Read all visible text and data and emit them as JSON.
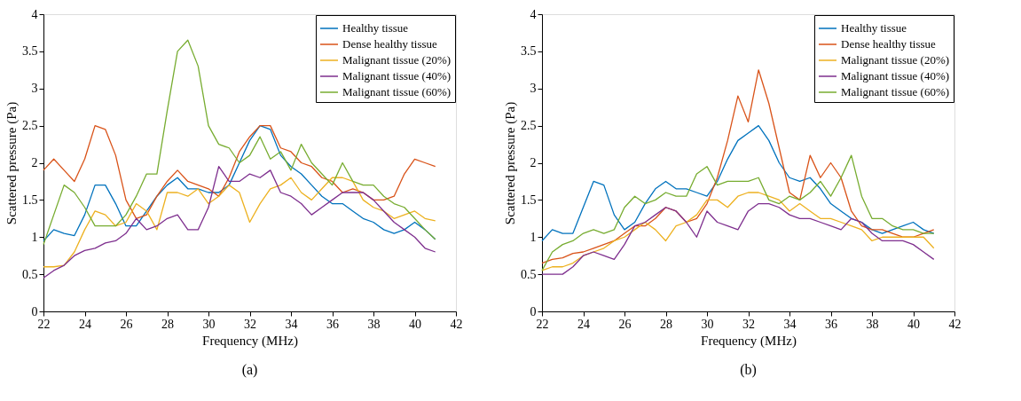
{
  "chart_data": [
    {
      "type": "line",
      "title": "(a)",
      "xlabel": "Frequency (MHz)",
      "ylabel": "Scattered pressure (Pa)",
      "xlim": [
        22,
        42
      ],
      "ylim": [
        0,
        4
      ],
      "xticks": [
        22,
        24,
        26,
        28,
        30,
        32,
        34,
        36,
        38,
        40,
        42
      ],
      "yticks": [
        0,
        0.5,
        1,
        1.5,
        2,
        2.5,
        3,
        3.5,
        4
      ],
      "grid": false,
      "legend": "top right",
      "marker": "none",
      "line_style": "solid",
      "x": [
        22,
        22.5,
        23,
        23.5,
        24,
        24.5,
        25,
        25.5,
        26,
        26.5,
        27,
        27.5,
        28,
        28.5,
        29,
        29.5,
        30,
        30.5,
        31,
        31.5,
        32,
        32.5,
        33,
        33.5,
        34,
        34.5,
        35,
        35.5,
        36,
        36.5,
        37,
        37.5,
        38,
        38.5,
        39,
        39.5,
        40,
        40.5,
        41
      ],
      "series": [
        {
          "name": "Healthy tissue",
          "color": "#0072bd",
          "values": [
            0.95,
            1.1,
            1.05,
            1.02,
            1.3,
            1.7,
            1.7,
            1.45,
            1.15,
            1.15,
            1.35,
            1.55,
            1.7,
            1.8,
            1.65,
            1.65,
            1.6,
            1.6,
            1.7,
            2.0,
            2.3,
            2.5,
            2.45,
            2.1,
            1.95,
            1.85,
            1.7,
            1.55,
            1.45,
            1.45,
            1.35,
            1.25,
            1.2,
            1.1,
            1.05,
            1.1,
            1.2,
            1.1,
            0.97
          ]
        },
        {
          "name": "Dense healthy tissue",
          "color": "#d95319",
          "values": [
            1.9,
            2.05,
            1.9,
            1.75,
            2.05,
            2.5,
            2.45,
            2.1,
            1.5,
            1.25,
            1.3,
            1.55,
            1.75,
            1.9,
            1.75,
            1.7,
            1.65,
            1.55,
            1.8,
            2.15,
            2.35,
            2.5,
            2.5,
            2.2,
            2.15,
            2.0,
            1.95,
            1.8,
            1.75,
            1.6,
            1.65,
            1.6,
            1.5,
            1.5,
            1.55,
            1.85,
            2.05,
            2.0,
            1.95
          ]
        },
        {
          "name": "Malignant tissue (20%)",
          "color": "#edb120",
          "values": [
            0.6,
            0.6,
            0.62,
            0.8,
            1.1,
            1.35,
            1.3,
            1.15,
            1.2,
            1.45,
            1.35,
            1.1,
            1.6,
            1.6,
            1.55,
            1.65,
            1.45,
            1.55,
            1.7,
            1.6,
            1.2,
            1.45,
            1.65,
            1.7,
            1.8,
            1.6,
            1.5,
            1.65,
            1.8,
            1.8,
            1.75,
            1.5,
            1.4,
            1.35,
            1.25,
            1.3,
            1.35,
            1.25,
            1.22
          ]
        },
        {
          "name": "Malignant tissue (40%)",
          "color": "#7e2f8e",
          "values": [
            0.45,
            0.55,
            0.62,
            0.75,
            0.82,
            0.85,
            0.92,
            0.95,
            1.05,
            1.25,
            1.1,
            1.15,
            1.25,
            1.3,
            1.1,
            1.1,
            1.4,
            1.95,
            1.75,
            1.75,
            1.85,
            1.8,
            1.9,
            1.6,
            1.55,
            1.45,
            1.3,
            1.4,
            1.5,
            1.6,
            1.6,
            1.6,
            1.5,
            1.35,
            1.2,
            1.1,
            1.0,
            0.85,
            0.8
          ]
        },
        {
          "name": "Malignant tissue (60%)",
          "color": "#77ac30",
          "values": [
            0.9,
            1.3,
            1.7,
            1.6,
            1.4,
            1.15,
            1.15,
            1.15,
            1.3,
            1.55,
            1.85,
            1.85,
            2.7,
            3.5,
            3.65,
            3.3,
            2.5,
            2.25,
            2.2,
            2.0,
            2.1,
            2.35,
            2.05,
            2.15,
            1.9,
            2.25,
            2.0,
            1.85,
            1.7,
            2.0,
            1.75,
            1.7,
            1.7,
            1.55,
            1.45,
            1.4,
            1.25,
            1.1,
            0.97
          ]
        }
      ]
    },
    {
      "type": "line",
      "title": "(b)",
      "xlabel": "Frequency (MHz)",
      "ylabel": "Scattered pressure (Pa)",
      "xlim": [
        22,
        42
      ],
      "ylim": [
        0,
        4
      ],
      "xticks": [
        22,
        24,
        26,
        28,
        30,
        32,
        34,
        36,
        38,
        40,
        42
      ],
      "yticks": [
        0,
        0.5,
        1,
        1.5,
        2,
        2.5,
        3,
        3.5,
        4
      ],
      "grid": false,
      "legend": "top right",
      "marker": "none",
      "line_style": "solid",
      "x": [
        22,
        22.5,
        23,
        23.5,
        24,
        24.5,
        25,
        25.5,
        26,
        26.5,
        27,
        27.5,
        28,
        28.5,
        29,
        29.5,
        30,
        30.5,
        31,
        31.5,
        32,
        32.5,
        33,
        33.5,
        34,
        34.5,
        35,
        35.5,
        36,
        36.5,
        37,
        37.5,
        38,
        38.5,
        39,
        39.5,
        40,
        40.5,
        41
      ],
      "series": [
        {
          "name": "Healthy tissue",
          "color": "#0072bd",
          "values": [
            0.95,
            1.1,
            1.05,
            1.05,
            1.4,
            1.75,
            1.7,
            1.3,
            1.1,
            1.2,
            1.45,
            1.65,
            1.75,
            1.65,
            1.65,
            1.6,
            1.55,
            1.75,
            2.05,
            2.3,
            2.4,
            2.5,
            2.3,
            2.0,
            1.8,
            1.75,
            1.8,
            1.65,
            1.45,
            1.35,
            1.25,
            1.2,
            1.1,
            1.05,
            1.1,
            1.15,
            1.2,
            1.1,
            1.05
          ]
        },
        {
          "name": "Dense healthy tissue",
          "color": "#d95319",
          "values": [
            0.65,
            0.7,
            0.72,
            0.78,
            0.8,
            0.85,
            0.9,
            0.95,
            1.05,
            1.15,
            1.15,
            1.25,
            1.4,
            1.35,
            1.2,
            1.25,
            1.45,
            1.8,
            2.3,
            2.9,
            2.55,
            3.25,
            2.8,
            2.2,
            1.6,
            1.5,
            2.1,
            1.8,
            2.0,
            1.8,
            1.35,
            1.15,
            1.1,
            1.1,
            1.05,
            1.0,
            1.0,
            1.05,
            1.1
          ]
        },
        {
          "name": "Malignant tissue (20%)",
          "color": "#edb120",
          "values": [
            0.55,
            0.6,
            0.6,
            0.65,
            0.75,
            0.8,
            0.85,
            0.95,
            1.0,
            1.1,
            1.2,
            1.1,
            0.95,
            1.15,
            1.2,
            1.3,
            1.5,
            1.5,
            1.4,
            1.55,
            1.6,
            1.6,
            1.55,
            1.5,
            1.35,
            1.45,
            1.35,
            1.25,
            1.25,
            1.2,
            1.15,
            1.1,
            0.95,
            1.0,
            1.0,
            1.0,
            1.0,
            1.0,
            0.85
          ]
        },
        {
          "name": "Malignant tissue (40%)",
          "color": "#7e2f8e",
          "values": [
            0.5,
            0.5,
            0.5,
            0.6,
            0.75,
            0.8,
            0.75,
            0.7,
            0.9,
            1.15,
            1.2,
            1.3,
            1.4,
            1.35,
            1.2,
            1.0,
            1.35,
            1.2,
            1.15,
            1.1,
            1.35,
            1.45,
            1.45,
            1.4,
            1.3,
            1.25,
            1.25,
            1.2,
            1.15,
            1.1,
            1.25,
            1.2,
            1.05,
            0.95,
            0.95,
            0.95,
            0.9,
            0.8,
            0.7
          ]
        },
        {
          "name": "Malignant tissue (60%)",
          "color": "#77ac30",
          "values": [
            0.55,
            0.8,
            0.9,
            0.95,
            1.05,
            1.1,
            1.05,
            1.1,
            1.4,
            1.55,
            1.45,
            1.5,
            1.6,
            1.55,
            1.55,
            1.85,
            1.95,
            1.7,
            1.75,
            1.75,
            1.75,
            1.8,
            1.5,
            1.45,
            1.55,
            1.5,
            1.6,
            1.75,
            1.55,
            1.8,
            2.1,
            1.55,
            1.25,
            1.25,
            1.15,
            1.1,
            1.1,
            1.05,
            1.05
          ]
        }
      ]
    }
  ]
}
